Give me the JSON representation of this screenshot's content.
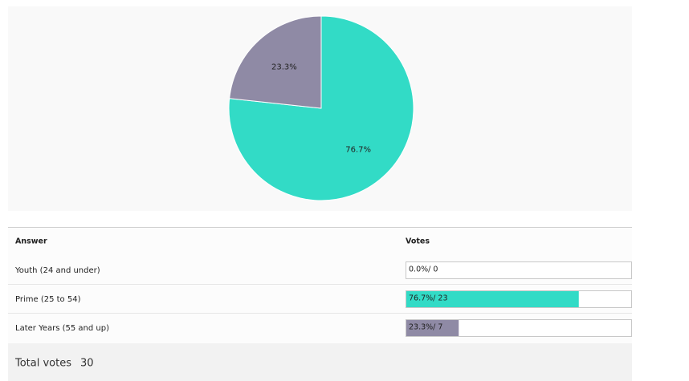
{
  "chart_data": {
    "type": "pie",
    "categories": [
      "Youth (24 and under)",
      "Prime (25 to 54)",
      "Later Years (55 and up)"
    ],
    "values": [
      0,
      76.7,
      23.3
    ],
    "value_labels": [
      null,
      "76.7%",
      "23.3%"
    ],
    "colors": [
      null,
      "#32dbc6",
      "#8f8aa5"
    ]
  },
  "table": {
    "headers": [
      "Answer",
      "Votes"
    ],
    "rows": [
      {
        "percent": 0,
        "votes": 0,
        "label": "0.0%/ 0"
      },
      {
        "percent": 76.7,
        "votes": 23,
        "label": "76.7%/ 23"
      },
      {
        "percent": 23.3,
        "votes": 7,
        "label": "23.3%/ 7"
      }
    ]
  },
  "total": {
    "label": "Total votes",
    "value": 30
  }
}
